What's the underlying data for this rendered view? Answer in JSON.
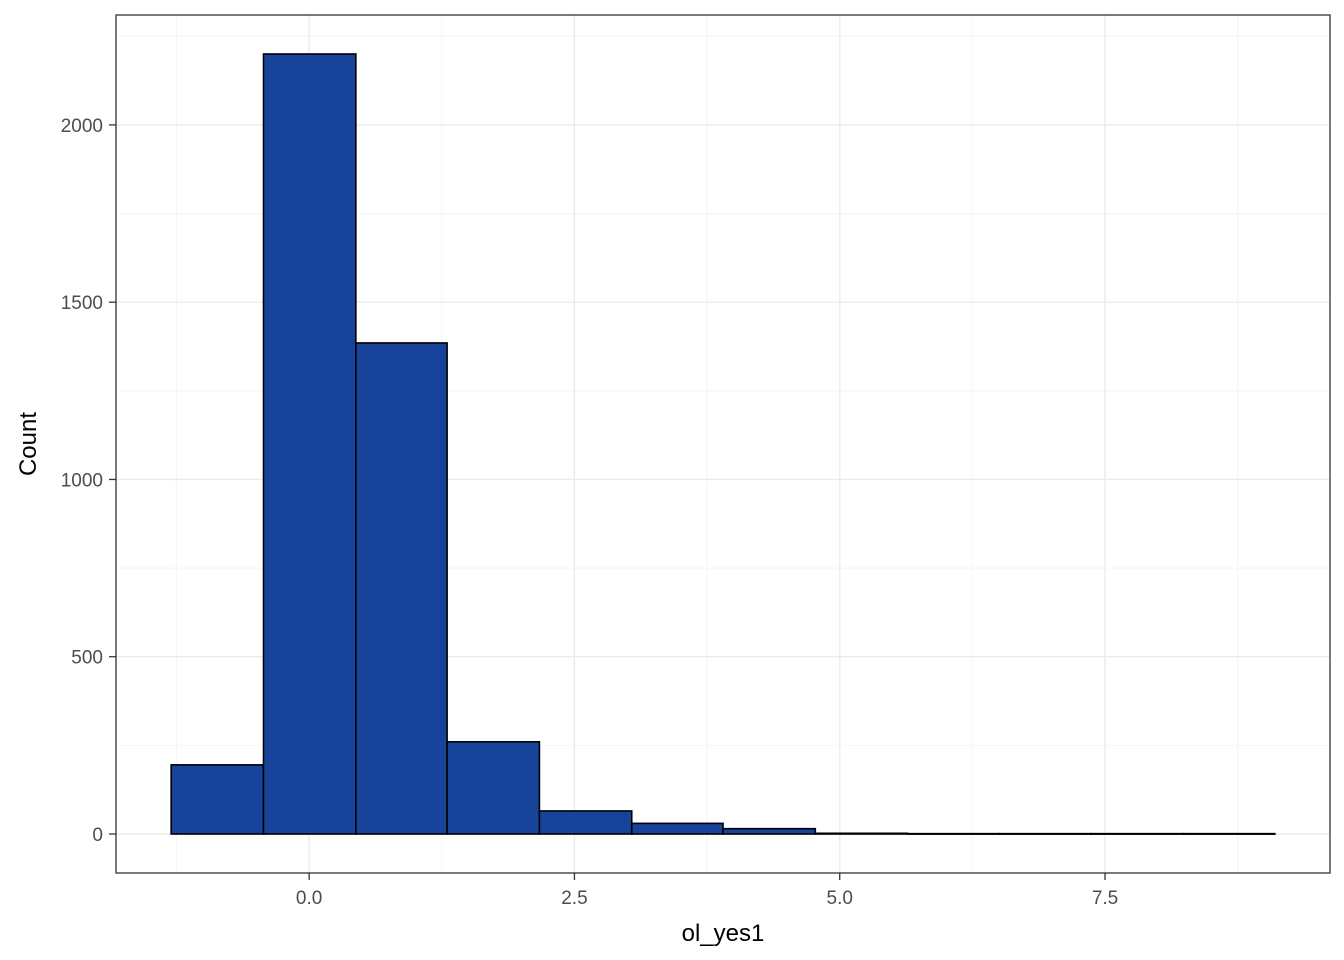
{
  "chart_data": {
    "type": "bar",
    "xlabel": "ol_yes1",
    "ylabel": "Count",
    "bin_edges": [
      -1.3,
      -0.43,
      0.44,
      1.3,
      2.17,
      3.04,
      3.9,
      4.77,
      5.64,
      6.5,
      7.37,
      8.24,
      9.1
    ],
    "values": [
      195,
      2200,
      1385,
      260,
      65,
      30,
      15,
      2,
      1,
      1,
      1,
      1
    ],
    "xlim": [
      -1.82,
      9.62
    ],
    "ylim": [
      -110,
      2310
    ],
    "x_ticks": [
      0.0,
      2.5,
      5.0,
      7.5
    ],
    "x_tick_labels": [
      "0.0",
      "2.5",
      "5.0",
      "7.5"
    ],
    "y_ticks": [
      0,
      500,
      1000,
      1500,
      2000
    ],
    "y_tick_labels": [
      "0",
      "500",
      "1000",
      "1500",
      "2000"
    ],
    "grid": true,
    "colors": {
      "bar_fill": "#17449a",
      "bar_stroke": "#000000",
      "grid_major": "#ebebeb",
      "grid_minor": "#f5f5f5",
      "panel_border": "#333333"
    }
  }
}
